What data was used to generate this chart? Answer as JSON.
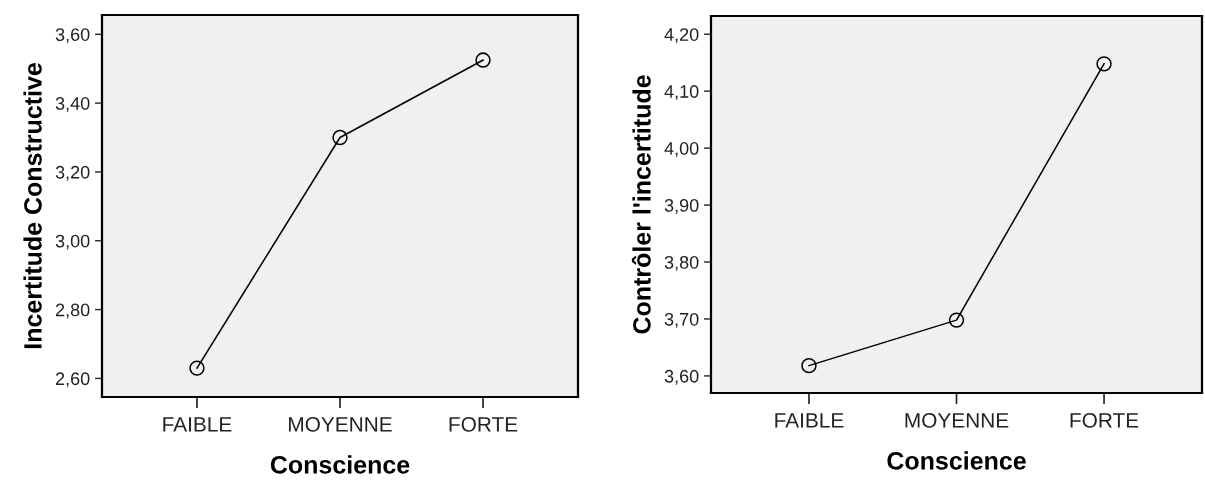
{
  "chart_data": [
    {
      "type": "line",
      "xlabel": "Conscience",
      "ylabel": "Incertitude Constructive",
      "categories": [
        "FAIBLE",
        "MOYENNE",
        "FORTE"
      ],
      "series": [
        {
          "color": "#000000",
          "values": [
            2.63,
            3.3,
            3.525
          ]
        }
      ],
      "ylim": [
        2.546,
        3.656
      ],
      "yticks": [
        {
          "value": 2.6,
          "label": "2,60"
        },
        {
          "value": 2.8,
          "label": "2,80"
        },
        {
          "value": 3.0,
          "label": "3,00"
        },
        {
          "value": 3.2,
          "label": "3,20"
        },
        {
          "value": 3.4,
          "label": "3,40"
        },
        {
          "value": 3.6,
          "label": "3,60"
        }
      ],
      "marker": "circle",
      "grid": false
    },
    {
      "type": "line",
      "xlabel": "Conscience",
      "ylabel": "Contrôler l'incertitude",
      "categories": [
        "FAIBLE",
        "MOYENNE",
        "FORTE"
      ],
      "series": [
        {
          "color": "#000000",
          "values": [
            3.618,
            3.698,
            4.148
          ]
        }
      ],
      "ylim": [
        3.57,
        4.232
      ],
      "yticks": [
        {
          "value": 3.6,
          "label": "3,60"
        },
        {
          "value": 3.7,
          "label": "3,70"
        },
        {
          "value": 3.8,
          "label": "3,80"
        },
        {
          "value": 3.9,
          "label": "3,90"
        },
        {
          "value": 4.0,
          "label": "4,00"
        },
        {
          "value": 4.1,
          "label": "4,10"
        },
        {
          "value": 4.2,
          "label": "4,20"
        }
      ],
      "marker": "circle",
      "grid": false
    }
  ]
}
